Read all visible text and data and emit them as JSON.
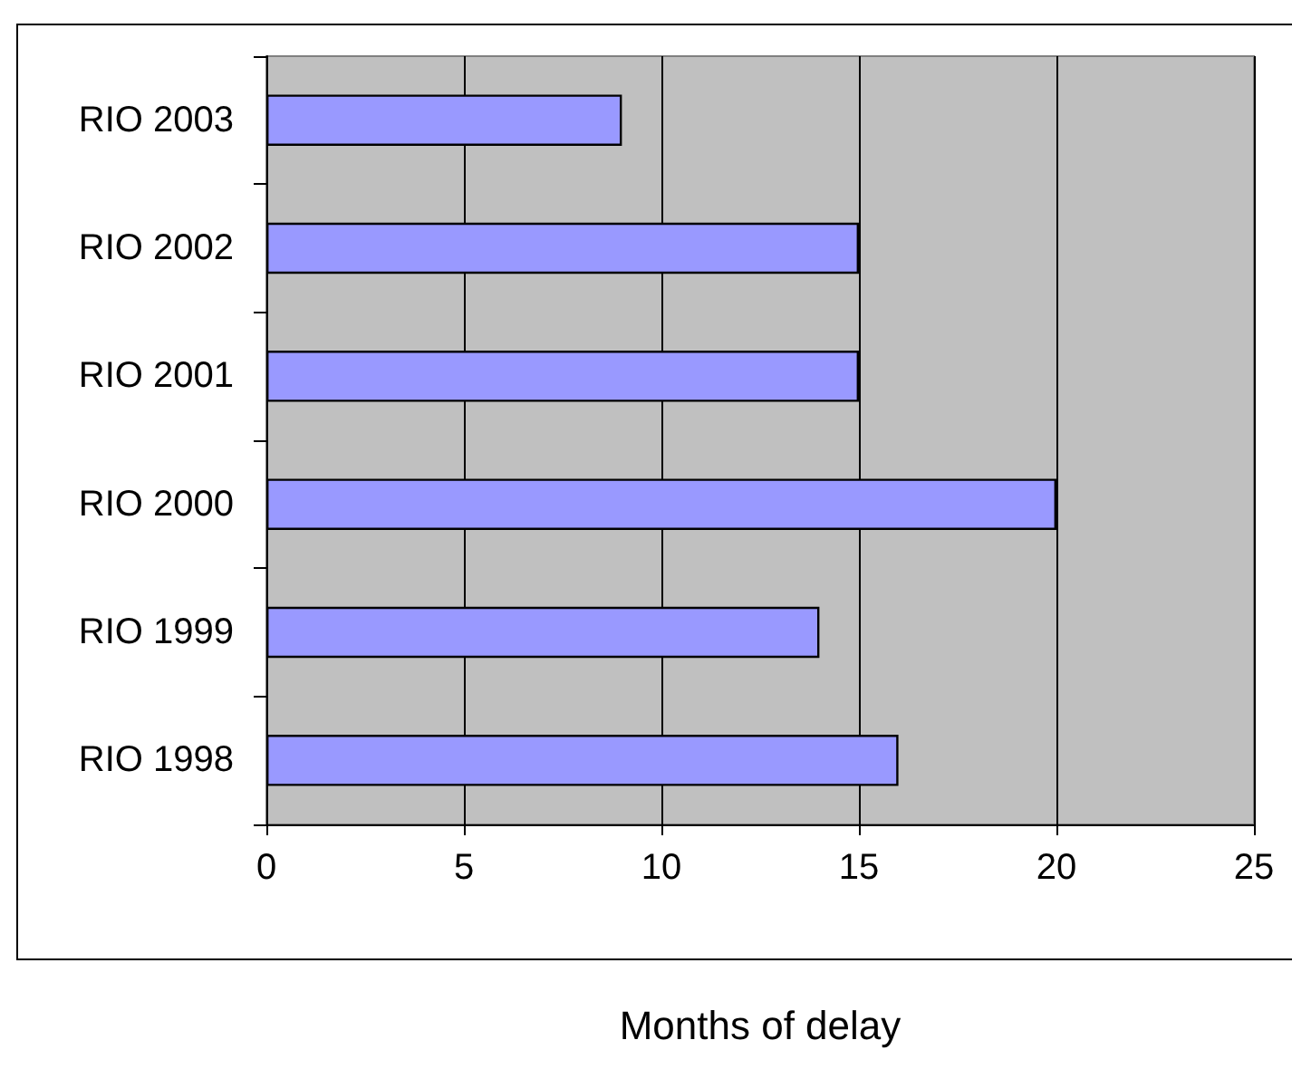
{
  "chart_data": {
    "type": "bar",
    "orientation": "horizontal",
    "xlabel": "Months of delay",
    "categories": [
      "RIO 2003",
      "RIO 2002",
      "RIO 2001",
      "RIO 2000",
      "RIO 1999",
      "RIO 1998"
    ],
    "values": [
      9,
      15,
      15,
      20,
      14,
      16
    ],
    "color": "#9999ff",
    "xlim": [
      0,
      25
    ],
    "xticks": [
      0,
      5,
      10,
      15,
      20,
      25
    ],
    "grid": "x"
  }
}
